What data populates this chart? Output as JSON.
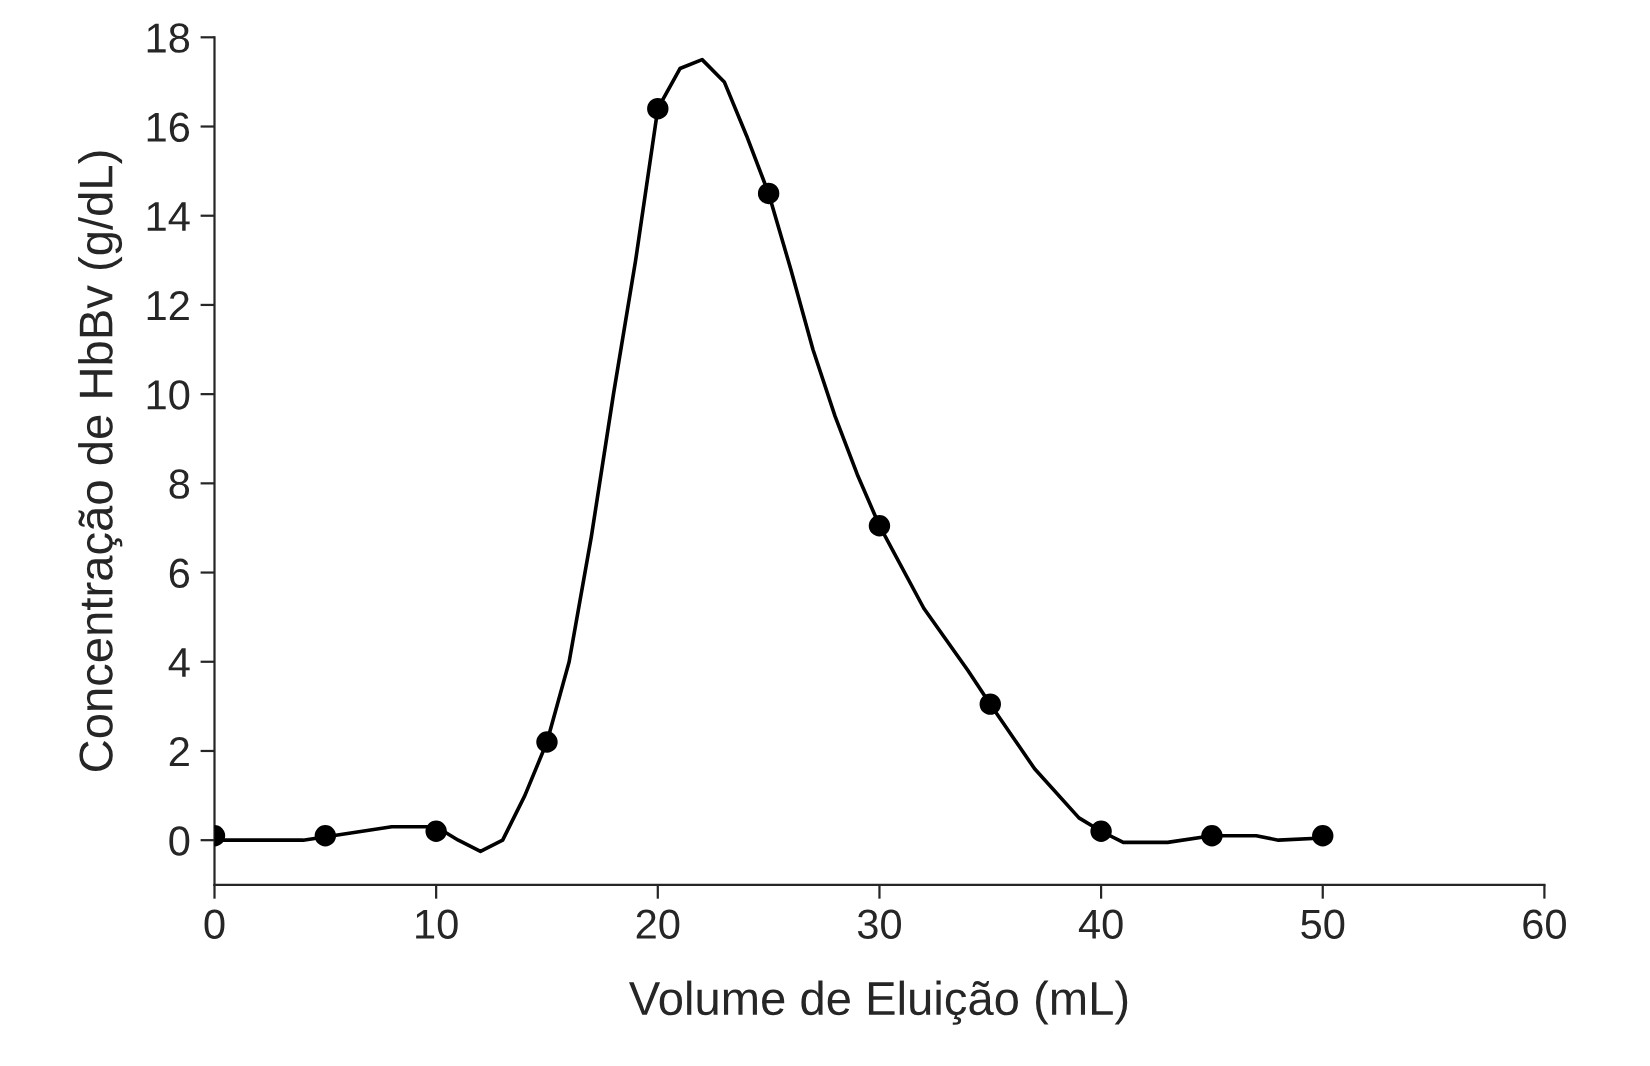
{
  "chart_data": {
    "type": "line",
    "xlabel": "Volume de Eluição (mL)",
    "ylabel": "Concentração de HbBv (g/dL)",
    "xlim": [
      0,
      60
    ],
    "xticks": [
      0,
      10,
      20,
      30,
      40,
      50,
      60
    ],
    "ylim": [
      -1,
      18
    ],
    "yticks": [
      0,
      2,
      4,
      6,
      8,
      10,
      12,
      14,
      16,
      18
    ],
    "grid": false,
    "legend": false,
    "series": [
      {
        "color": "#000000",
        "marker": "none",
        "line_style": "solid",
        "x": [
          0,
          4,
          8,
          10,
          11,
          12,
          13,
          14,
          15,
          16,
          17,
          18,
          19,
          20,
          21,
          22,
          23,
          24,
          25,
          26,
          27,
          28,
          29,
          30,
          32,
          34,
          35,
          37,
          39,
          40,
          41,
          43,
          45,
          47,
          48,
          50
        ],
        "values": [
          0,
          0,
          0.3,
          0.3,
          0,
          -0.25,
          0,
          1,
          2.2,
          4,
          6.8,
          10,
          13,
          16.4,
          17.3,
          17.5,
          17,
          15.8,
          14.5,
          12.8,
          11,
          9.5,
          8.2,
          7.05,
          5.2,
          3.8,
          3.05,
          1.6,
          0.5,
          0.2,
          -0.05,
          -0.05,
          0.1,
          0.1,
          0,
          0.05
        ]
      },
      {
        "type": "scatter",
        "color": "#000000",
        "marker": "circle",
        "x": [
          0,
          5,
          10,
          15,
          20,
          25,
          30,
          35,
          40,
          45,
          50
        ],
        "values": [
          0.1,
          0.1,
          0.2,
          2.2,
          16.4,
          14.5,
          7.05,
          3.05,
          0.2,
          0.1,
          0.1
        ]
      }
    ]
  }
}
